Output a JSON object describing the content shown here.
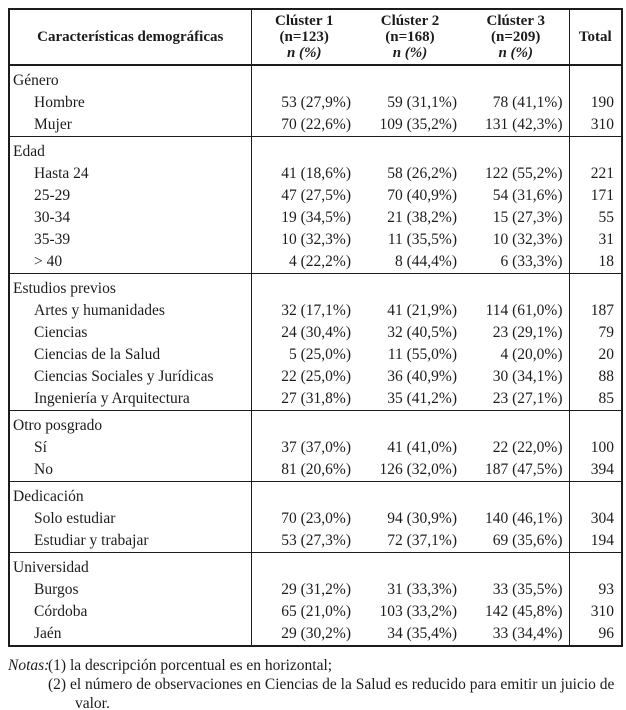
{
  "table": {
    "header": {
      "col_label": "Características demográficas",
      "clusters": [
        {
          "title": "Clúster 1",
          "n": "(n=123)",
          "sub": "n (%)"
        },
        {
          "title": "Clúster 2",
          "n": "(n=168)",
          "sub": "n (%)"
        },
        {
          "title": "Clúster 3",
          "n": "(n=209)",
          "sub": "n (%)"
        }
      ],
      "total_label": "Total"
    },
    "sections": [
      {
        "title": "Género",
        "rows": [
          {
            "label": "Hombre",
            "c1": "53 (27,9%)",
            "c2": "59 (31,1%)",
            "c3": "78 (41,1%)",
            "total": "190"
          },
          {
            "label": "Mujer",
            "c1": "70 (22,6%)",
            "c2": "109 (35,2%)",
            "c3": "131 (42,3%)",
            "total": "310"
          }
        ]
      },
      {
        "title": "Edad",
        "rows": [
          {
            "label": "Hasta 24",
            "c1": "41 (18,6%)",
            "c2": "58 (26,2%)",
            "c3": "122 (55,2%)",
            "total": "221"
          },
          {
            "label": "25-29",
            "c1": "47 (27,5%)",
            "c2": "70 (40,9%)",
            "c3": "54 (31,6%)",
            "total": "171"
          },
          {
            "label": "30-34",
            "c1": "19 (34,5%)",
            "c2": "21 (38,2%)",
            "c3": "15 (27,3%)",
            "total": "55"
          },
          {
            "label": "35-39",
            "c1": "10 (32,3%)",
            "c2": "11 (35,5%)",
            "c3": "10 (32,3%)",
            "total": "31"
          },
          {
            "label": "> 40",
            "c1": "4 (22,2%)",
            "c2": "8 (44,4%)",
            "c3": "6 (33,3%)",
            "total": "18"
          }
        ]
      },
      {
        "title": "Estudios previos",
        "rows": [
          {
            "label": "Artes y humanidades",
            "c1": "32 (17,1%)",
            "c2": "41 (21,9%)",
            "c3": "114 (61,0%)",
            "total": "187"
          },
          {
            "label": "Ciencias",
            "c1": "24 (30,4%)",
            "c2": "32 (40,5%)",
            "c3": "23 (29,1%)",
            "total": "79"
          },
          {
            "label": "Ciencias de la Salud",
            "c1": "5 (25,0%)",
            "c2": "11 (55,0%)",
            "c3": "4 (20,0%)",
            "total": "20"
          },
          {
            "label": "Ciencias Sociales y Jurídicas",
            "c1": "22 (25,0%)",
            "c2": "36 (40,9%)",
            "c3": "30 (34,1%)",
            "total": "88"
          },
          {
            "label": "Ingeniería y Arquitectura",
            "c1": "27 (31,8%)",
            "c2": "35 (41,2%)",
            "c3": "23 (27,1%)",
            "total": "85"
          }
        ]
      },
      {
        "title": "Otro posgrado",
        "rows": [
          {
            "label": "Sí",
            "c1": "37 (37,0%)",
            "c2": "41 (41,0%)",
            "c3": "22 (22,0%)",
            "total": "100"
          },
          {
            "label": "No",
            "c1": "81 (20,6%)",
            "c2": "126 (32,0%)",
            "c3": "187 (47,5%)",
            "total": "394"
          }
        ]
      },
      {
        "title": "Dedicación",
        "rows": [
          {
            "label": "Solo estudiar",
            "c1": "70 (23,0%)",
            "c2": "94 (30,9%)",
            "c3": "140 (46,1%)",
            "total": "304"
          },
          {
            "label": "Estudiar y trabajar",
            "c1": "53 (27,3%)",
            "c2": "72 (37,1%)",
            "c3": "69 (35,6%)",
            "total": "194"
          }
        ]
      },
      {
        "title": "Universidad",
        "rows": [
          {
            "label": "Burgos",
            "c1": "29 (31,2%)",
            "c2": "31 (33,3%)",
            "c3": "33 (35,5%)",
            "total": "93"
          },
          {
            "label": "Córdoba",
            "c1": "65 (21,0%)",
            "c2": "103 (33,2%)",
            "c3": "142 (45,8%)",
            "total": "310"
          },
          {
            "label": "Jaén",
            "c1": "29 (30,2%)",
            "c2": "34 (35,4%)",
            "c3": "33 (34,4%)",
            "total": "96"
          }
        ]
      }
    ]
  },
  "notes": {
    "label": "Notas:",
    "items": [
      "(1) la descripción porcentual es en horizontal;",
      "(2) el número de observaciones en Ciencias de la Salud es reducido para emitir un juicio de valor."
    ]
  }
}
